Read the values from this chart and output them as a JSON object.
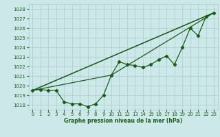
{
  "title": "Graphe pression niveau de la mer (hPa)",
  "bg_color": "#cce8e8",
  "grid_color": "#aacccc",
  "line_color": "#1a5c1a",
  "xlim": [
    -0.5,
    23.5
  ],
  "ylim": [
    1017.5,
    1028.5
  ],
  "yticks": [
    1018,
    1019,
    1020,
    1021,
    1022,
    1023,
    1024,
    1025,
    1026,
    1027,
    1028
  ],
  "xticks": [
    0,
    1,
    2,
    3,
    4,
    5,
    6,
    7,
    8,
    9,
    10,
    11,
    12,
    13,
    14,
    15,
    16,
    17,
    18,
    19,
    20,
    21,
    22,
    23
  ],
  "x_main": [
    0,
    1,
    2,
    3,
    4,
    5,
    6,
    7,
    8,
    9,
    10,
    11,
    12,
    13,
    14,
    15,
    16,
    17,
    18,
    19,
    20,
    21,
    22,
    23
  ],
  "y_main": [
    1019.5,
    1019.6,
    1019.5,
    1019.5,
    1018.3,
    1018.1,
    1018.1,
    1017.8,
    1018.1,
    1019.0,
    1021.1,
    1022.5,
    1022.2,
    1022.1,
    1021.9,
    1022.2,
    1022.7,
    1023.1,
    1022.2,
    1024.0,
    1026.0,
    1025.2,
    1027.2,
    1027.6
  ],
  "trend_lines": [
    {
      "x": [
        0,
        23
      ],
      "y": [
        1019.5,
        1027.6
      ]
    },
    {
      "x": [
        0,
        23
      ],
      "y": [
        1019.5,
        1027.6
      ]
    },
    {
      "x": [
        0,
        10,
        23
      ],
      "y": [
        1019.5,
        1021.1,
        1027.6
      ]
    }
  ],
  "tick_fontsize": 5,
  "xlabel_fontsize": 5.5,
  "linewidth": 0.9,
  "markersize": 2.2
}
